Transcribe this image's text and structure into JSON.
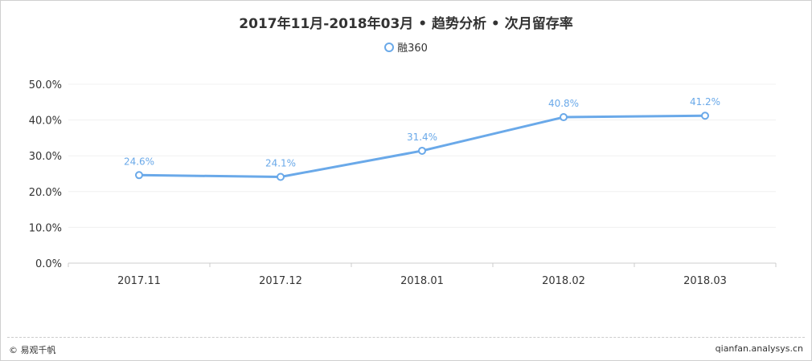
{
  "chart_data": {
    "type": "line",
    "title": "2017年11月-2018年03月 • 趋势分析 • 次月留存率",
    "categories": [
      "2017.11",
      "2017.12",
      "2018.01",
      "2018.02",
      "2018.03"
    ],
    "series": [
      {
        "name": "融360",
        "values": [
          24.6,
          24.1,
          31.4,
          40.8,
          41.2
        ],
        "labels": [
          "24.6%",
          "24.1%",
          "31.4%",
          "40.8%",
          "41.2%"
        ]
      }
    ],
    "y_ticks": [
      "0.0%",
      "10.0%",
      "20.0%",
      "30.0%",
      "40.0%",
      "50.0%"
    ],
    "ylim": [
      0,
      50
    ],
    "grid": true,
    "legend_position": "top-center",
    "line_color": "#6aa9e9"
  },
  "footer": {
    "left": "© 易观千帆",
    "right": "qianfan.analysys.cn"
  }
}
